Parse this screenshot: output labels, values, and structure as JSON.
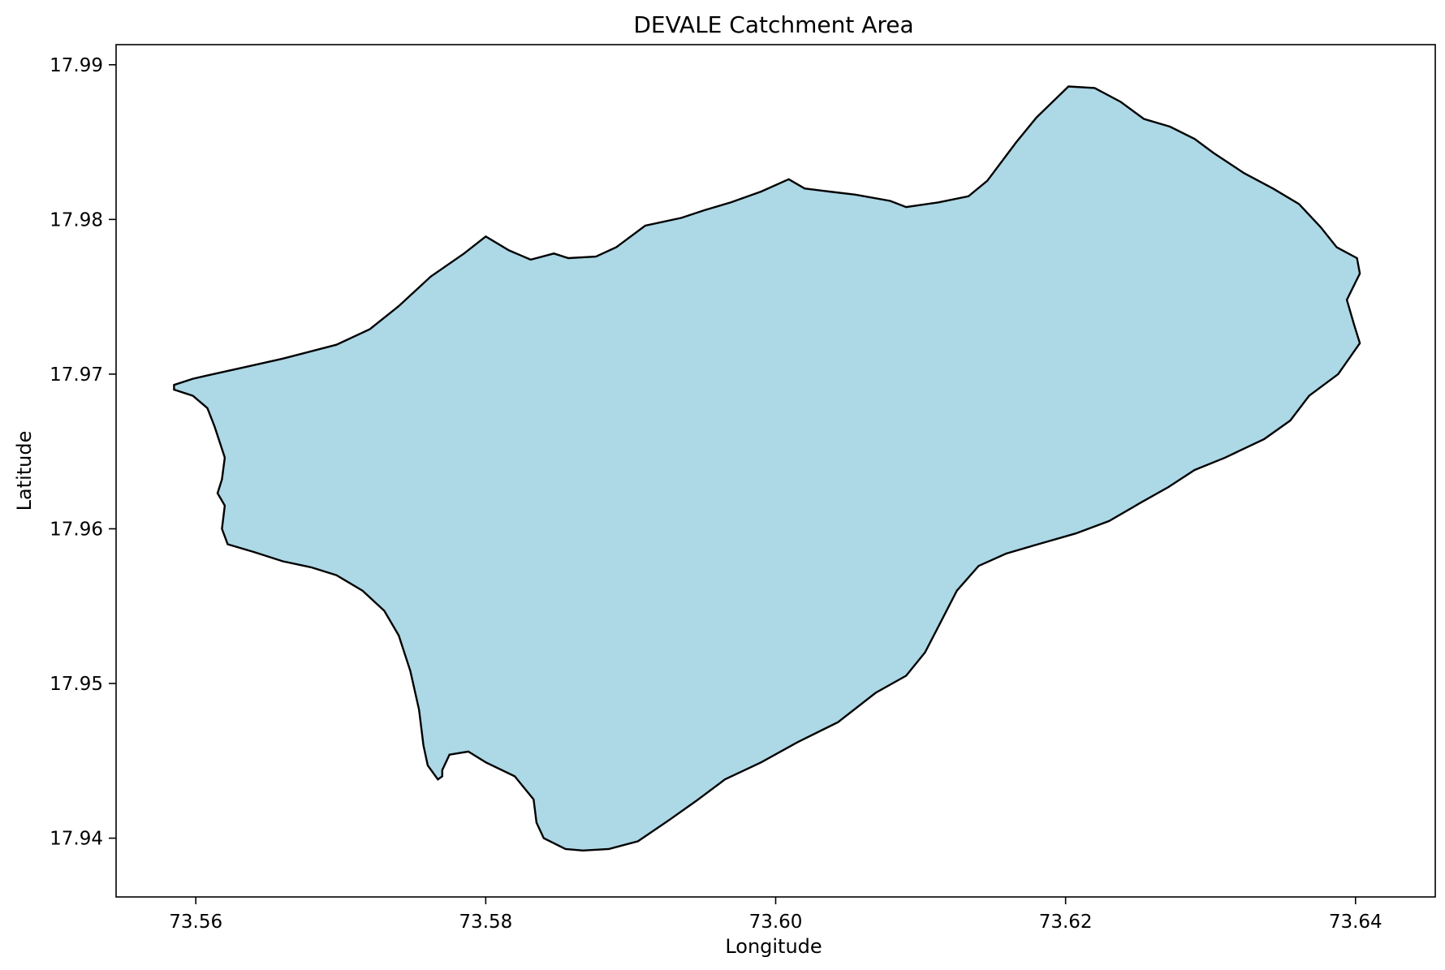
{
  "chart_data": {
    "type": "map",
    "title": "DEVALE Catchment Area",
    "xlabel": "Longitude",
    "ylabel": "Latitude",
    "xlim": [
      73.5545,
      73.6455
    ],
    "ylim": [
      17.9362,
      17.9913
    ],
    "x_ticks": [
      73.56,
      73.58,
      73.6,
      73.62,
      73.64
    ],
    "x_tick_labels": [
      "73.56",
      "73.58",
      "73.60",
      "73.62",
      "73.64"
    ],
    "y_ticks": [
      17.94,
      17.95,
      17.96,
      17.97,
      17.98,
      17.99
    ],
    "y_tick_labels": [
      "17.94",
      "17.95",
      "17.96",
      "17.97",
      "17.98",
      "17.99"
    ],
    "grid": false,
    "legend": false,
    "fill_color": "#add8e6",
    "edge_color": "#000000",
    "boundary": {
      "lon": [
        73.5585,
        73.5598,
        73.5612,
        73.5636,
        73.566,
        73.5697,
        73.572,
        73.574,
        73.5762,
        73.5785,
        73.58,
        73.5816,
        73.5831,
        73.5847,
        73.5857,
        73.5876,
        73.589,
        73.591,
        73.5935,
        73.5951,
        73.5969,
        73.599,
        73.6009,
        73.602,
        73.6037,
        73.6055,
        73.6079,
        73.609,
        73.6112,
        73.6133,
        73.6146,
        73.6166,
        73.618,
        73.6202,
        73.622,
        73.6238,
        73.6254,
        73.6272,
        73.6289,
        73.6302,
        73.6323,
        73.6343,
        73.6361,
        73.6376,
        73.6387,
        73.6401,
        73.6403,
        73.6394,
        73.6399,
        73.6403,
        73.6388,
        73.6368,
        73.6355,
        73.6337,
        73.631,
        73.6289,
        73.6271,
        73.6252,
        73.623,
        73.6207,
        73.6181,
        73.6159,
        73.614,
        73.6125,
        73.6114,
        73.6103,
        73.609,
        73.6069,
        73.6043,
        73.6015,
        73.599,
        73.5965,
        73.5945,
        73.5927,
        73.5905,
        73.5885,
        73.5867,
        73.5855,
        73.584,
        73.5835,
        73.5833,
        73.582,
        73.58,
        73.5788,
        73.5775,
        73.577,
        73.577,
        73.5767,
        73.576,
        73.5757,
        73.5754,
        73.5748,
        73.574,
        73.573,
        73.5715,
        73.5697,
        73.568,
        73.566,
        73.564,
        73.5622,
        73.5618,
        73.562,
        73.5615,
        73.5618,
        73.562,
        73.5613,
        73.5608,
        73.5598,
        73.5585
      ],
      "lat": [
        17.9693,
        17.9697,
        17.97,
        17.9705,
        17.971,
        17.9719,
        17.9729,
        17.9744,
        17.9763,
        17.9778,
        17.9789,
        17.978,
        17.9774,
        17.9778,
        17.9775,
        17.9776,
        17.9782,
        17.9796,
        17.9801,
        17.9806,
        17.9811,
        17.9818,
        17.9826,
        17.982,
        17.9818,
        17.9816,
        17.9812,
        17.9808,
        17.9811,
        17.9815,
        17.9825,
        17.985,
        17.9866,
        17.9886,
        17.9885,
        17.9876,
        17.9865,
        17.986,
        17.9852,
        17.9843,
        17.983,
        17.982,
        17.981,
        17.9795,
        17.9782,
        17.9775,
        17.9765,
        17.9748,
        17.9732,
        17.972,
        17.97,
        17.9686,
        17.967,
        17.9658,
        17.9646,
        17.9638,
        17.9627,
        17.9617,
        17.9605,
        17.9597,
        17.959,
        17.9584,
        17.9576,
        17.956,
        17.954,
        17.952,
        17.9505,
        17.9494,
        17.9475,
        17.9462,
        17.9449,
        17.9438,
        17.9424,
        17.9412,
        17.9398,
        17.9393,
        17.9392,
        17.9393,
        17.94,
        17.941,
        17.9425,
        17.944,
        17.9449,
        17.9456,
        17.9454,
        17.9444,
        17.944,
        17.9438,
        17.9447,
        17.946,
        17.9483,
        17.9508,
        17.9531,
        17.9547,
        17.956,
        17.957,
        17.9575,
        17.9579,
        17.9585,
        17.959,
        17.96,
        17.9615,
        17.9623,
        17.9632,
        17.9646,
        17.9666,
        17.9678,
        17.9686,
        17.969
      ]
    }
  }
}
